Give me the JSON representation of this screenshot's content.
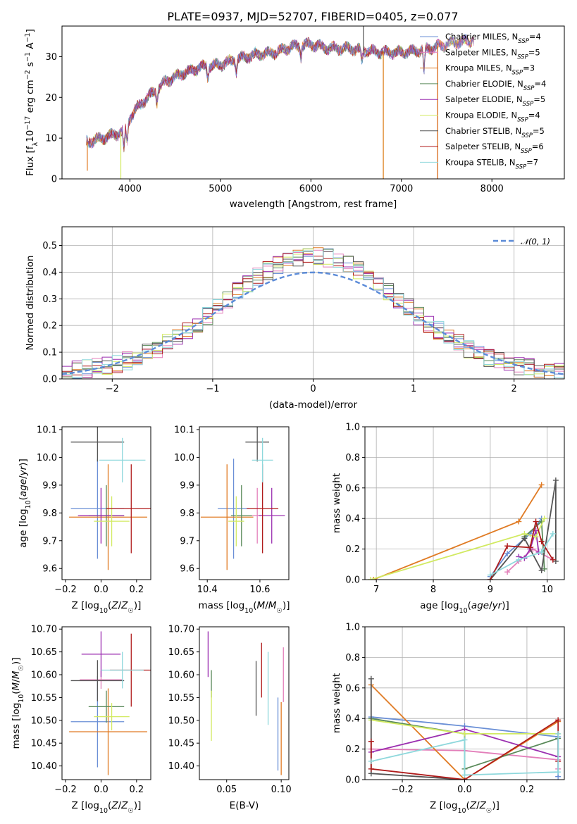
{
  "figure": {
    "title": "PLATE=0937, MJD=52707, FIBERID=0405, z=0.077"
  },
  "colors": {
    "Chabrier MILES": "#6a8fd6",
    "Salpeter MILES": "#e37fba",
    "Kroupa MILES": "#e07b24",
    "Chabrier ELODIE": "#5a8a5a",
    "Salpeter ELODIE": "#9b2fb0",
    "Kroupa ELODIE": "#d2ea62",
    "Chabrier STELIB": "#555555",
    "Salpeter STELIB": "#b01c1c",
    "Kroupa STELIB": "#8ed8dc"
  },
  "chart_data": [
    {
      "id": "spectrum",
      "type": "line",
      "xlabel": "wavelength [Angstrom, rest frame]",
      "ylabel": "Flux [f_λ 10^-17 erg cm^-2 s^-1 A^-1]",
      "xlim": [
        3250,
        8800
      ],
      "ylim": [
        0,
        37.5
      ],
      "xticks": [
        4000,
        5000,
        6000,
        7000,
        8000
      ],
      "yticks": [
        0,
        10,
        20,
        30
      ],
      "legend_position": "top-right",
      "legend": [
        {
          "label": "Chabrier MILES, N_SSP=4",
          "model": "Chabrier MILES",
          "main": "Chabrier MILES, N",
          "sub": "SSP",
          "tail": "=4"
        },
        {
          "label": "Salpeter MILES, N_SSP=5",
          "model": "Salpeter MILES",
          "main": "Salpeter MILES, N",
          "sub": "SSP",
          "tail": "=5"
        },
        {
          "label": "Kroupa MILES, N_SSP=3",
          "model": "Kroupa MILES",
          "main": "Kroupa MILES, N",
          "sub": "SSP",
          "tail": "=3"
        },
        {
          "label": "Chabrier ELODIE, N_SSP=4",
          "model": "Chabrier ELODIE",
          "main": "Chabrier ELODIE, N",
          "sub": "SSP",
          "tail": "=4"
        },
        {
          "label": "Salpeter ELODIE, N_SSP=5",
          "model": "Salpeter ELODIE",
          "main": "Salpeter ELODIE, N",
          "sub": "SSP",
          "tail": "=5"
        },
        {
          "label": "Kroupa ELODIE, N_SSP=4",
          "model": "Kroupa ELODIE",
          "main": "Kroupa ELODIE, N",
          "sub": "SSP",
          "tail": "=4"
        },
        {
          "label": "Chabrier STELIB, N_SSP=5",
          "model": "Chabrier STELIB",
          "main": "Chabrier STELIB, N",
          "sub": "SSP",
          "tail": "=5"
        },
        {
          "label": "Salpeter STELIB, N_SSP=6",
          "model": "Salpeter STELIB",
          "main": "Salpeter STELIB, N",
          "sub": "SSP",
          "tail": "=6"
        },
        {
          "label": "Kroupa STELIB, N_SSP=7",
          "model": "Kroupa STELIB",
          "main": "Kroupa STELIB, N",
          "sub": "SSP",
          "tail": "=7"
        }
      ],
      "continuum": [
        [
          3520,
          9
        ],
        [
          3700,
          10
        ],
        [
          3850,
          11
        ],
        [
          3950,
          12
        ],
        [
          4000,
          15
        ],
        [
          4100,
          18
        ],
        [
          4250,
          21
        ],
        [
          4400,
          24
        ],
        [
          4600,
          26
        ],
        [
          4800,
          27.5
        ],
        [
          5000,
          28
        ],
        [
          5200,
          29.5
        ],
        [
          5400,
          30.5
        ],
        [
          5600,
          31
        ],
        [
          5800,
          32.5
        ],
        [
          6000,
          33
        ],
        [
          6200,
          32
        ],
        [
          6400,
          32
        ],
        [
          6600,
          31.5
        ],
        [
          6800,
          31
        ],
        [
          7000,
          31
        ],
        [
          7200,
          31.5
        ],
        [
          7400,
          32.5
        ],
        [
          7600,
          33.5
        ],
        [
          7800,
          34
        ]
      ],
      "dips": [
        [
          3934,
          5
        ],
        [
          3969,
          5
        ],
        [
          4300,
          3
        ],
        [
          4861,
          3
        ],
        [
          5175,
          3
        ],
        [
          5890,
          2.5
        ],
        [
          6563,
          3
        ],
        [
          7250,
          6
        ]
      ],
      "spikes": [
        {
          "model": "Kroupa ELODIE",
          "x": 3900,
          "y": 0
        },
        {
          "model": "Kroupa ELODIE",
          "x": 6800,
          "y": 0
        },
        {
          "model": "Kroupa MILES",
          "x": 6800,
          "y": 0
        },
        {
          "model": "Salpeter STELIB",
          "x": 7400,
          "y": 0
        },
        {
          "model": "Kroupa MILES",
          "x": 7400,
          "y": 0
        },
        {
          "model": "Kroupa MILES",
          "x": 3530,
          "y": 2
        },
        {
          "model": "Chabrier STELIB",
          "x": 6580,
          "y": 37.5
        }
      ]
    },
    {
      "id": "residuals",
      "type": "line",
      "xlabel": "(data-model)/error",
      "ylabel": "Normed distribution",
      "xlim": [
        -2.5,
        2.5
      ],
      "ylim": [
        0,
        0.57
      ],
      "xticks": [
        -2,
        -1,
        0,
        1,
        2
      ],
      "yticks": [
        0,
        0.1,
        0.2,
        0.3,
        0.4,
        0.5
      ],
      "grid": true,
      "legend_position": "top-right",
      "reference": {
        "name": "N(0,1)",
        "label": "𝒩(0, 1)",
        "color": "#5b8bd8",
        "mu": 0,
        "sigma": 1
      },
      "bin_width": 0.1,
      "histogram_note": "one normalized histogram of residuals per model, bins of width 0.1 between -2.5 and 2.5"
    },
    {
      "id": "age_vs_Z",
      "type": "scatter",
      "xlabel": "Z [log10(Z/Z☉)]",
      "ylabel": "age [log10(age/yr)]",
      "xlim": [
        -0.22,
        0.28
      ],
      "ylim": [
        9.56,
        10.11
      ],
      "xticks": [
        -0.2,
        0.0,
        0.2
      ],
      "yticks": [
        9.6,
        9.7,
        9.8,
        9.9,
        10.0,
        10.1
      ],
      "points": [
        {
          "model": "Chabrier MILES",
          "x": -0.02,
          "xerr": 0.15,
          "y": 9.815,
          "yerr": 0.18
        },
        {
          "model": "Salpeter MILES",
          "x": 0.0,
          "xerr": 0.12,
          "y": 9.79,
          "yerr": 0.1
        },
        {
          "model": "Kroupa MILES",
          "x": 0.04,
          "xerr": 0.22,
          "y": 9.785,
          "yerr": 0.19
        },
        {
          "model": "Chabrier ELODIE",
          "x": 0.03,
          "xerr": 0.1,
          "y": 9.79,
          "yerr": 0.11
        },
        {
          "model": "Salpeter ELODIE",
          "x": 0.0,
          "xerr": 0.13,
          "y": 9.79,
          "yerr": 0.1
        },
        {
          "model": "Kroupa ELODIE",
          "x": 0.06,
          "xerr": 0.1,
          "y": 9.77,
          "yerr": 0.09
        },
        {
          "model": "Chabrier STELIB",
          "x": -0.02,
          "xerr": 0.15,
          "y": 10.055,
          "yerr": 0.07
        },
        {
          "model": "Salpeter STELIB",
          "x": 0.17,
          "xerr": 0.14,
          "y": 9.815,
          "yerr": 0.16
        },
        {
          "model": "Kroupa STELIB",
          "x": 0.12,
          "xerr": 0.13,
          "y": 9.99,
          "yerr": 0.08
        }
      ]
    },
    {
      "id": "age_vs_mass",
      "type": "scatter",
      "xlabel": "mass [log10(M/M☉)]",
      "ylabel": "",
      "xlim": [
        10.37,
        10.71
      ],
      "ylim": [
        9.56,
        10.11
      ],
      "xticks": [
        10.4,
        10.6
      ],
      "yticks": [
        9.6,
        9.7,
        9.8,
        9.9,
        10.0,
        10.1
      ],
      "points": [
        {
          "model": "Chabrier MILES",
          "x": 10.5,
          "xerr": 0.06,
          "y": 9.815,
          "yerr": 0.18
        },
        {
          "model": "Salpeter MILES",
          "x": 10.59,
          "xerr": 0.02,
          "y": 9.79,
          "yerr": 0.1
        },
        {
          "model": "Kroupa MILES",
          "x": 10.475,
          "xerr": 0.1,
          "y": 9.785,
          "yerr": 0.19
        },
        {
          "model": "Chabrier ELODIE",
          "x": 10.53,
          "xerr": 0.04,
          "y": 9.79,
          "yerr": 0.11
        },
        {
          "model": "Salpeter ELODIE",
          "x": 10.645,
          "xerr": 0.05,
          "y": 9.79,
          "yerr": 0.1
        },
        {
          "model": "Kroupa ELODIE",
          "x": 10.51,
          "xerr": 0.03,
          "y": 9.77,
          "yerr": 0.09
        },
        {
          "model": "Chabrier STELIB",
          "x": 10.59,
          "xerr": 0.045,
          "y": 10.055,
          "yerr": 0.07
        },
        {
          "model": "Salpeter STELIB",
          "x": 10.61,
          "xerr": 0.06,
          "y": 9.815,
          "yerr": 0.16
        },
        {
          "model": "Kroupa STELIB",
          "x": 10.61,
          "xerr": 0.04,
          "y": 9.99,
          "yerr": 0.08
        }
      ]
    },
    {
      "id": "weights_vs_age",
      "type": "line",
      "xlabel": "age [log10(age/yr)]",
      "ylabel": "mass weight",
      "xlim": [
        6.8,
        10.3
      ],
      "ylim": [
        0,
        1
      ],
      "xticks": [
        7,
        8,
        9,
        10
      ],
      "yticks": [
        0.0,
        0.2,
        0.4,
        0.6,
        0.8,
        1.0
      ],
      "grid": true,
      "series": [
        {
          "model": "Chabrier MILES",
          "x": [
            9.0,
            9.3,
            9.7,
            9.9
          ],
          "y": [
            0.02,
            0.17,
            0.3,
            0.4
          ]
        },
        {
          "model": "Salpeter MILES",
          "x": [
            9.3,
            9.5,
            9.75,
            10.1
          ],
          "y": [
            0.05,
            0.12,
            0.2,
            0.13
          ]
        },
        {
          "model": "Kroupa MILES",
          "x": [
            6.95,
            9.5,
            9.9
          ],
          "y": [
            0.0,
            0.38,
            0.62
          ]
        },
        {
          "model": "Chabrier ELODIE",
          "x": [
            9.6,
            9.9,
            9.95
          ],
          "y": [
            0.28,
            0.38,
            0.07
          ]
        },
        {
          "model": "Salpeter ELODIE",
          "x": [
            9.5,
            9.6,
            9.7,
            9.8,
            9.85
          ],
          "y": [
            0.15,
            0.14,
            0.2,
            0.32,
            0.18
          ]
        },
        {
          "model": "Kroupa ELODIE",
          "x": [
            6.9,
            9.6,
            9.8,
            9.95
          ],
          "y": [
            0.0,
            0.3,
            0.28,
            0.4
          ]
        },
        {
          "model": "Chabrier STELIB",
          "x": [
            9.0,
            9.6,
            9.9,
            10.15,
            10.15
          ],
          "y": [
            0.0,
            0.27,
            0.06,
            0.65,
            0.12
          ]
        },
        {
          "model": "Salpeter STELIB",
          "x": [
            9.0,
            9.3,
            9.7,
            9.8,
            9.9,
            10.1
          ],
          "y": [
            0.0,
            0.22,
            0.21,
            0.38,
            0.25,
            0.13
          ]
        },
        {
          "model": "Kroupa STELIB",
          "x": [
            9.0,
            9.5,
            9.9,
            10.1
          ],
          "y": [
            0.03,
            0.13,
            0.18,
            0.3
          ]
        }
      ]
    },
    {
      "id": "mass_vs_Z",
      "type": "scatter",
      "xlabel": "Z [log10(Z/Z☉)]",
      "ylabel": "mass [log10(M/M☉)]",
      "xlim": [
        -0.22,
        0.28
      ],
      "ylim": [
        10.37,
        10.705
      ],
      "xticks": [
        -0.2,
        0.0,
        0.2
      ],
      "yticks": [
        10.4,
        10.45,
        10.5,
        10.55,
        10.6,
        10.65,
        10.7
      ],
      "points": [
        {
          "model": "Chabrier MILES",
          "x": -0.02,
          "xerr": 0.15,
          "y": 10.497,
          "yerr": 0.1
        },
        {
          "model": "Salpeter MILES",
          "x": 0.0,
          "xerr": 0.12,
          "y": 10.589,
          "yerr": 0.02
        },
        {
          "model": "Kroupa MILES",
          "x": 0.04,
          "xerr": 0.22,
          "y": 10.475,
          "yerr": 0.095
        },
        {
          "model": "Chabrier ELODIE",
          "x": 0.03,
          "xerr": 0.1,
          "y": 10.53,
          "yerr": 0.035
        },
        {
          "model": "Salpeter ELODIE",
          "x": 0.0,
          "xerr": 0.11,
          "y": 10.645,
          "yerr": 0.05
        },
        {
          "model": "Kroupa ELODIE",
          "x": 0.06,
          "xerr": 0.1,
          "y": 10.508,
          "yerr": 0.03
        },
        {
          "model": "Chabrier STELIB",
          "x": -0.02,
          "xerr": 0.15,
          "y": 10.587,
          "yerr": 0.045
        },
        {
          "model": "Salpeter STELIB",
          "x": 0.17,
          "xerr": 0.12,
          "y": 10.61,
          "yerr": 0.08
        },
        {
          "model": "Kroupa STELIB",
          "x": 0.12,
          "xerr": 0.12,
          "y": 10.61,
          "yerr": 0.04
        }
      ]
    },
    {
      "id": "mass_vs_ebv",
      "type": "scatter",
      "xlabel": "E(B-V)",
      "ylabel": "",
      "xlim": [
        0.025,
        0.107
      ],
      "ylim": [
        10.37,
        10.705
      ],
      "xticks": [
        0.05,
        0.1
      ],
      "yticks": [
        10.4,
        10.45,
        10.5,
        10.55,
        10.6,
        10.65,
        10.7
      ],
      "points": [
        {
          "model": "Chabrier MILES",
          "x": 0.097,
          "y": 10.47,
          "yerr": 0.08
        },
        {
          "model": "Salpeter MILES",
          "x": 0.102,
          "y": 10.6,
          "yerr": 0.06
        },
        {
          "model": "Kroupa MILES",
          "x": 0.1,
          "y": 10.46,
          "yerr": 0.08
        },
        {
          "model": "Chabrier ELODIE",
          "x": 0.036,
          "y": 10.58,
          "yerr": 0.03
        },
        {
          "model": "Salpeter ELODIE",
          "x": 0.033,
          "y": 10.645,
          "yerr": 0.05
        },
        {
          "model": "Kroupa ELODIE",
          "x": 0.036,
          "y": 10.51,
          "yerr": 0.055
        },
        {
          "model": "Chabrier STELIB",
          "x": 0.077,
          "y": 10.57,
          "yerr": 0.06
        },
        {
          "model": "Salpeter STELIB",
          "x": 0.082,
          "y": 10.61,
          "yerr": 0.06
        },
        {
          "model": "Kroupa STELIB",
          "x": 0.088,
          "y": 10.57,
          "yerr": 0.08
        }
      ]
    },
    {
      "id": "weights_vs_Z",
      "type": "line",
      "xlabel": "Z [log10(Z/Z☉)]",
      "ylabel": "mass weight",
      "xlim": [
        -0.32,
        0.32
      ],
      "ylim": [
        0,
        1
      ],
      "xticks": [
        -0.2,
        0.0,
        0.2
      ],
      "yticks": [
        0.0,
        0.2,
        0.4,
        0.6,
        0.8,
        1.0
      ],
      "grid": true,
      "series": [
        {
          "model": "Chabrier MILES",
          "x": [
            -0.3,
            0.0,
            0.3,
            0.3
          ],
          "y": [
            0.41,
            0.35,
            0.28,
            0.02
          ]
        },
        {
          "model": "Salpeter MILES",
          "x": [
            -0.3,
            0.0,
            0.3,
            0.3
          ],
          "y": [
            0.2,
            0.19,
            0.13,
            0.07
          ]
        },
        {
          "model": "Kroupa MILES",
          "x": [
            -0.3,
            0.0,
            0.3
          ],
          "y": [
            0.62,
            0.0,
            0.38
          ]
        },
        {
          "model": "Chabrier ELODIE",
          "x": [
            -0.3,
            0.0,
            0.0,
            0.3
          ],
          "y": [
            0.4,
            0.3,
            0.07,
            0.27
          ]
        },
        {
          "model": "Salpeter ELODIE",
          "x": [
            -0.3,
            0.0,
            0.3
          ],
          "y": [
            0.18,
            0.33,
            0.15
          ]
        },
        {
          "model": "Kroupa ELODIE",
          "x": [
            -0.3,
            0.0,
            0.3
          ],
          "y": [
            0.39,
            0.3,
            0.3
          ]
        },
        {
          "model": "Chabrier STELIB",
          "x": [
            -0.3,
            -0.3,
            0.0
          ],
          "y": [
            0.66,
            0.04,
            0.0
          ]
        },
        {
          "model": "Salpeter STELIB",
          "x": [
            -0.3,
            -0.3,
            0.0,
            0.3,
            0.3
          ],
          "y": [
            0.25,
            0.07,
            0.0,
            0.39,
            0.12
          ]
        },
        {
          "model": "Kroupa STELIB",
          "x": [
            -0.3,
            0.0,
            0.0,
            0.3,
            0.3
          ],
          "y": [
            0.12,
            0.26,
            0.03,
            0.05,
            0.3
          ]
        }
      ]
    }
  ]
}
